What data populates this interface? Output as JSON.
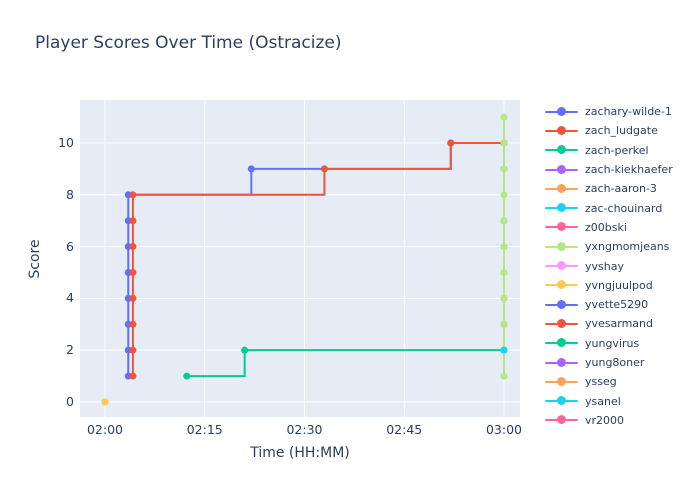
{
  "chart_data": {
    "type": "line",
    "title": "Player Scores Over Time (Ostracize)",
    "xlabel": "Time (HH:MM)",
    "ylabel": "Score",
    "line_shape": "hv",
    "plot_bg_color": "#E5ECF6",
    "grid_color": "#FFFFFF",
    "text_color": "#2a3f5f",
    "legend_position": "right",
    "x_unit": "minutes after 02:00",
    "x_range": [
      -3.76,
      62.41
    ],
    "y_range": [
      -0.58,
      11.66
    ],
    "x_ticks": [
      {
        "minute": 0,
        "label": "02:00"
      },
      {
        "minute": 15,
        "label": "02:15"
      },
      {
        "minute": 30,
        "label": "02:30"
      },
      {
        "minute": 45,
        "label": "02:45"
      },
      {
        "minute": 60,
        "label": "03:00"
      }
    ],
    "y_ticks": [
      0,
      2,
      4,
      6,
      8,
      10
    ],
    "series": [
      {
        "name": "zachary-wilde-1",
        "color": "#636EFA",
        "points": [
          [
            3.5,
            1
          ],
          [
            3.5,
            2
          ],
          [
            3.5,
            3
          ],
          [
            3.5,
            4
          ],
          [
            3.5,
            5
          ],
          [
            3.5,
            6
          ],
          [
            3.5,
            7
          ],
          [
            3.5,
            8
          ],
          [
            22,
            9
          ],
          [
            52,
            10
          ],
          [
            60,
            10
          ]
        ]
      },
      {
        "name": "zach_ludgate",
        "color": "#EF553B",
        "points": [
          [
            4.2,
            1
          ],
          [
            4.2,
            2
          ],
          [
            4.2,
            3
          ],
          [
            4.2,
            4
          ],
          [
            4.2,
            5
          ],
          [
            4.2,
            6
          ],
          [
            4.2,
            7
          ],
          [
            4.2,
            8
          ],
          [
            33,
            9
          ],
          [
            52,
            10
          ],
          [
            60,
            10
          ]
        ]
      },
      {
        "name": "zach-perkel",
        "color": "#00CC96",
        "points": [
          [
            12.3,
            1
          ],
          [
            21,
            2
          ],
          [
            60,
            2
          ]
        ]
      },
      {
        "name": "zach-kiekhaefer",
        "color": "#AB63FA",
        "points": [
          [
            60,
            9
          ]
        ]
      },
      {
        "name": "zach-aaron-3",
        "color": "#FFA15A",
        "points": [
          [
            0,
            0
          ]
        ]
      },
      {
        "name": "zac-chouinard",
        "color": "#19D3F3",
        "points": [
          [
            60,
            7
          ]
        ]
      },
      {
        "name": "z00bski",
        "color": "#FF6692",
        "points": [
          [
            60,
            3
          ],
          [
            60,
            4
          ]
        ]
      },
      {
        "name": "yxngmomjeans",
        "color": "#B6E880",
        "points": [
          [
            60,
            1
          ],
          [
            60,
            2
          ],
          [
            60,
            3
          ],
          [
            60,
            4
          ],
          [
            60,
            5
          ],
          [
            60,
            6
          ],
          [
            60,
            7
          ],
          [
            60,
            8
          ],
          [
            60,
            9
          ],
          [
            60,
            10
          ],
          [
            60,
            11
          ]
        ]
      },
      {
        "name": "yvshay",
        "color": "#FF97FF",
        "points": []
      },
      {
        "name": "yvngjuulpod",
        "color": "#FECB52",
        "points": [
          [
            0,
            0
          ]
        ]
      },
      {
        "name": "yvette5290",
        "color": "#636EFA",
        "points": []
      },
      {
        "name": "yvesarmand",
        "color": "#EF553B",
        "points": []
      },
      {
        "name": "yungvirus",
        "color": "#00CC96",
        "points": []
      },
      {
        "name": "yung8oner",
        "color": "#AB63FA",
        "points": []
      },
      {
        "name": "ysseg",
        "color": "#FFA15A",
        "points": []
      },
      {
        "name": "ysanel",
        "color": "#19D3F3",
        "points": [
          [
            60,
            2
          ]
        ]
      },
      {
        "name": "yr2000",
        "color": "#FF6692",
        "points": []
      }
    ]
  }
}
